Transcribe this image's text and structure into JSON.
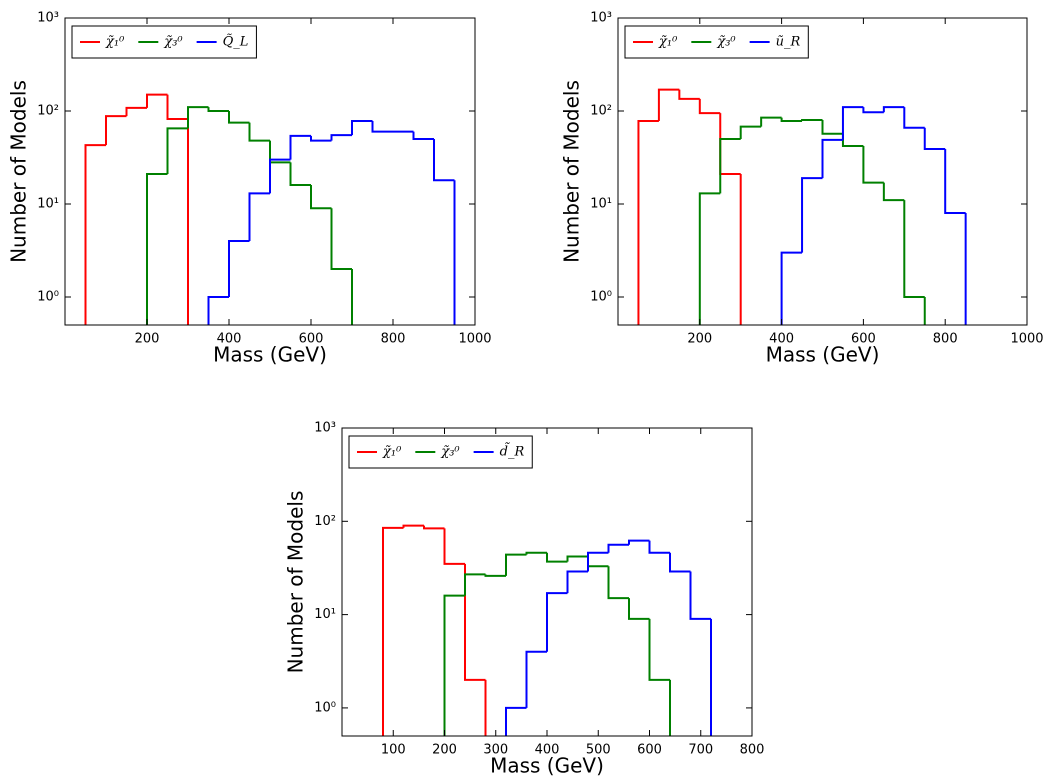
{
  "chart_data": [
    {
      "type": "histogram",
      "xlabel": "Mass (GeV)",
      "ylabel": "Number of Models",
      "log_y": true,
      "legend": "upper left",
      "xlim": [
        0,
        1000
      ],
      "xticks": [
        200,
        400,
        600,
        800,
        1000
      ],
      "ylim": [
        0.5,
        1000
      ],
      "yticks": [
        {
          "value": 1,
          "label": "10⁰"
        },
        {
          "value": 10,
          "label": "10¹"
        },
        {
          "value": 100,
          "label": "10²"
        },
        {
          "value": 1000,
          "label": "10³"
        }
      ],
      "series": [
        {
          "name": "χ̃₁⁰",
          "color": "#ff0000",
          "bins": [
            50,
            100,
            150,
            200,
            250,
            300
          ],
          "values": [
            43,
            88,
            108,
            150,
            82
          ]
        },
        {
          "name": "χ̃₃⁰",
          "color": "#008000",
          "bins": [
            200,
            250,
            300,
            350,
            400,
            450,
            500,
            550,
            600,
            650,
            700
          ],
          "values": [
            21,
            65,
            110,
            100,
            75,
            48,
            28,
            16,
            9,
            2
          ]
        },
        {
          "name": "Q̃_L",
          "color": "#0000ff",
          "bins": [
            350,
            400,
            450,
            500,
            550,
            600,
            650,
            700,
            750,
            800,
            850,
            900,
            950
          ],
          "values": [
            1,
            4,
            13,
            30,
            54,
            48,
            55,
            78,
            60,
            60,
            50,
            18
          ]
        }
      ]
    },
    {
      "type": "histogram",
      "xlabel": "Mass (GeV)",
      "ylabel": "Number of Models",
      "log_y": true,
      "legend": "upper left",
      "xlim": [
        0,
        1000
      ],
      "xticks": [
        200,
        400,
        600,
        800,
        1000
      ],
      "ylim": [
        0.5,
        1000
      ],
      "yticks": [
        {
          "value": 1,
          "label": "10⁰"
        },
        {
          "value": 10,
          "label": "10¹"
        },
        {
          "value": 100,
          "label": "10²"
        },
        {
          "value": 1000,
          "label": "10³"
        }
      ],
      "series": [
        {
          "name": "χ̃₁⁰",
          "color": "#ff0000",
          "bins": [
            50,
            100,
            150,
            200,
            250,
            300
          ],
          "values": [
            78,
            170,
            135,
            95,
            21
          ]
        },
        {
          "name": "χ̃₃⁰",
          "color": "#008000",
          "bins": [
            200,
            250,
            300,
            350,
            400,
            450,
            500,
            550,
            600,
            650,
            700,
            750
          ],
          "values": [
            13,
            50,
            68,
            85,
            78,
            80,
            57,
            42,
            17,
            11,
            1
          ]
        },
        {
          "name": "ũ_R",
          "color": "#0000ff",
          "bins": [
            400,
            450,
            500,
            550,
            600,
            650,
            700,
            750,
            800,
            850
          ],
          "values": [
            3,
            19,
            49,
            110,
            97,
            110,
            66,
            39,
            8
          ]
        }
      ]
    },
    {
      "type": "histogram",
      "xlabel": "Mass (GeV)",
      "ylabel": "Number of Models",
      "log_y": true,
      "legend": "upper left",
      "xlim": [
        0,
        800
      ],
      "xticks": [
        100,
        200,
        300,
        400,
        500,
        600,
        700,
        800
      ],
      "ylim": [
        0.5,
        1000
      ],
      "yticks": [
        {
          "value": 1,
          "label": "10⁰"
        },
        {
          "value": 10,
          "label": "10¹"
        },
        {
          "value": 100,
          "label": "10²"
        },
        {
          "value": 1000,
          "label": "10³"
        }
      ],
      "series": [
        {
          "name": "χ̃₁⁰",
          "color": "#ff0000",
          "bins": [
            80,
            120,
            160,
            200,
            240,
            280
          ],
          "values": [
            85,
            90,
            84,
            35,
            2
          ]
        },
        {
          "name": "χ̃₃⁰",
          "color": "#008000",
          "bins": [
            200,
            240,
            280,
            320,
            360,
            400,
            440,
            480,
            520,
            560,
            600,
            640
          ],
          "values": [
            16,
            27,
            26,
            44,
            46,
            37,
            42,
            33,
            15,
            9,
            2
          ]
        },
        {
          "name": "d̃_R",
          "color": "#0000ff",
          "bins": [
            320,
            360,
            400,
            440,
            480,
            520,
            560,
            600,
            640,
            680,
            720
          ],
          "values": [
            1,
            4,
            17,
            29,
            46,
            56,
            62,
            46,
            29,
            9
          ]
        }
      ]
    }
  ]
}
